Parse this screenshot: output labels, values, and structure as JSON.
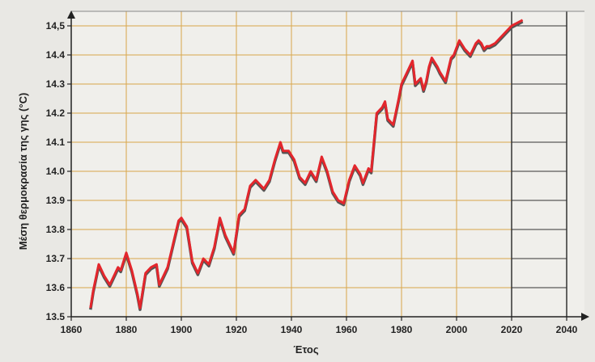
{
  "chart_data": {
    "type": "line",
    "title": "",
    "xlabel": "Έτος",
    "ylabel": "Μέση θερμοκρασία της γης (°C)",
    "xlim": [
      1860,
      2040
    ],
    "ylim": [
      13.5,
      14.5
    ],
    "x_ticks": [
      1860,
      1880,
      1900,
      1920,
      1940,
      1960,
      1980,
      2000,
      2020,
      2040
    ],
    "y_ticks": [
      13.5,
      13.6,
      13.7,
      13.8,
      13.9,
      14.0,
      14.1,
      14.2,
      14.3,
      14.4,
      14.5
    ],
    "x_tick_labels": [
      "1860",
      "1880",
      "1900",
      "1920",
      "1940",
      "1960",
      "1980",
      "2000",
      "2020",
      "2040"
    ],
    "y_tick_labels": [
      "13.5",
      "13.6",
      "13.7",
      "13.8",
      "13.9",
      "14.0",
      "14.1",
      "14.2",
      "14.3",
      "14.4",
      "14,5"
    ],
    "grid": true,
    "colors": {
      "line": "#e3262c",
      "line_shadow": "#555555",
      "grid": "#d9a64a",
      "axis": "#222222",
      "plot_background": "#f0efeb"
    },
    "series": [
      {
        "x": [
          1867,
          1868,
          1870,
          1872,
          1874,
          1876,
          1877,
          1878,
          1880,
          1882,
          1884,
          1885,
          1887,
          1889,
          1891,
          1892,
          1895,
          1897,
          1899,
          1900,
          1902,
          1904,
          1906,
          1908,
          1910,
          1912,
          1914,
          1916,
          1918,
          1919,
          1921,
          1923,
          1925,
          1927,
          1928,
          1930,
          1932,
          1934,
          1936,
          1937,
          1939,
          1941,
          1943,
          1945,
          1947,
          1949,
          1951,
          1953,
          1955,
          1957,
          1959,
          1961,
          1963,
          1965,
          1966,
          1968,
          1969,
          1971,
          1973,
          1974,
          1975,
          1977,
          1979,
          1980,
          1982,
          1984,
          1985,
          1987,
          1988,
          1989,
          1990,
          1991,
          1993,
          1994,
          1996,
          1998,
          1999,
          2001,
          2003,
          2005,
          2007,
          2008,
          2009,
          2010,
          2011,
          2012,
          2014,
          2016,
          2018,
          2020,
          2022,
          2024
        ],
        "y": [
          13.53,
          13.59,
          13.68,
          13.64,
          13.61,
          13.65,
          13.67,
          13.66,
          13.72,
          13.66,
          13.58,
          13.53,
          13.65,
          13.67,
          13.68,
          13.61,
          13.67,
          13.75,
          13.83,
          13.84,
          13.81,
          13.69,
          13.65,
          13.7,
          13.68,
          13.74,
          13.84,
          13.78,
          13.74,
          13.72,
          13.85,
          13.87,
          13.95,
          13.97,
          13.96,
          13.94,
          13.97,
          14.04,
          14.1,
          14.07,
          14.07,
          14.04,
          13.98,
          13.96,
          14.0,
          13.97,
          14.05,
          14.0,
          13.93,
          13.9,
          13.89,
          13.97,
          14.02,
          13.99,
          13.96,
          14.01,
          14.0,
          14.2,
          14.22,
          14.24,
          14.18,
          14.16,
          14.25,
          14.3,
          14.34,
          14.38,
          14.3,
          14.32,
          14.28,
          14.31,
          14.36,
          14.39,
          14.36,
          14.34,
          14.31,
          14.39,
          14.4,
          14.45,
          14.42,
          14.4,
          14.44,
          14.45,
          14.44,
          14.42,
          14.43,
          14.43,
          14.44,
          14.46,
          14.48,
          14.5,
          14.51,
          14.52
        ]
      }
    ]
  }
}
